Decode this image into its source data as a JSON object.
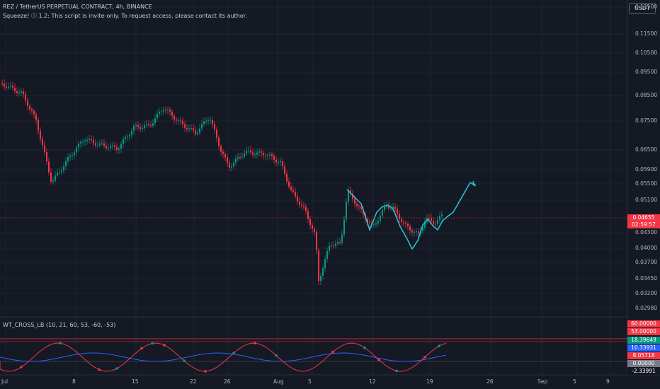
{
  "symbol": {
    "title": "REZ / TetherUS PERPETUAL CONTRACT, 4h, BINANCE",
    "indicator": "Squeeze! ⓘ 1.2: This script is invite-only. To request access, please contact its author."
  },
  "currency_button": "USDT",
  "price_axis": {
    "labels": [
      "0.12500",
      "0.11500",
      "0.10500",
      "0.09500",
      "0.08500",
      "0.07500",
      "0.06500",
      "0.05900",
      "0.05500",
      "0.05100",
      "0.04300",
      "0.04000",
      "0.03700",
      "0.03450",
      "0.03200",
      "0.02980"
    ]
  },
  "current_price": {
    "value": "0.04655",
    "countdown": "02:59:57"
  },
  "oscillator": {
    "title": "WT_CROSS_LB (10, 21, 60, 53, -60, -53)",
    "tags": [
      {
        "value": "60.00000",
        "color": "#f23645"
      },
      {
        "value": "53.00000",
        "color": "#f23645"
      },
      {
        "value": "18.39649",
        "color": "#089981"
      },
      {
        "value": "10.33931",
        "color": "#2962ff"
      },
      {
        "value": "8.05718",
        "color": "#f23645"
      },
      {
        "value": "0.00000",
        "color": "#787b86"
      },
      {
        "value": "-2.33991",
        "color": "#151924"
      }
    ]
  },
  "time_axis": {
    "labels": [
      "Jul",
      "8",
      "15",
      "22",
      "26",
      "Aug",
      "5",
      "12",
      "19",
      "26",
      "Sep",
      "5",
      "9"
    ]
  },
  "colors": {
    "up": "#089981",
    "down": "#f23645",
    "drawing": "#26c6da",
    "background": "#151924",
    "grid": "#1f2432"
  }
}
